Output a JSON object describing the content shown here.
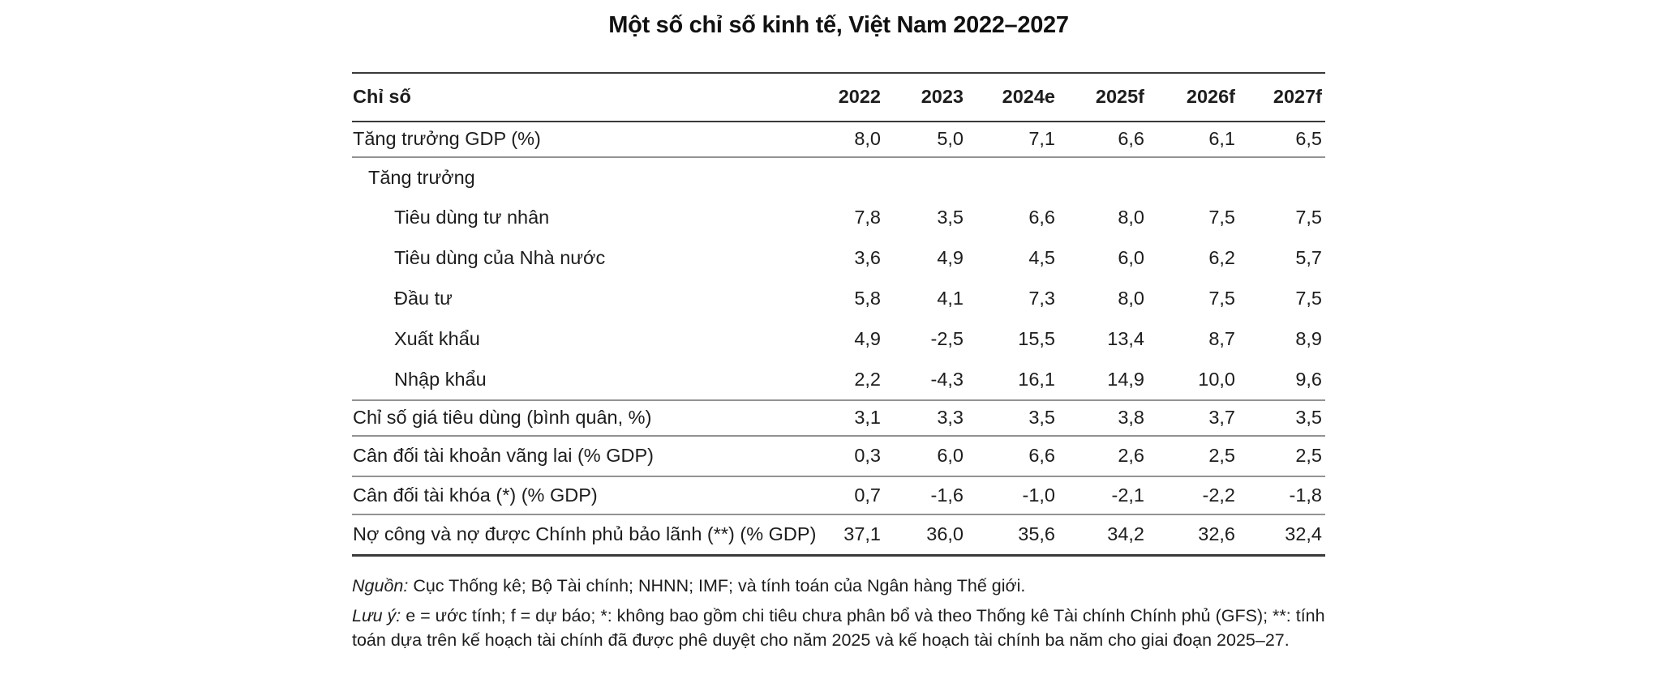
{
  "title": "Một số chỉ số kinh tế, Việt Nam 2022–2027",
  "table": {
    "header": [
      "Chỉ số",
      "2022",
      "2023",
      "2024e",
      "2025f",
      "2026f",
      "2027f"
    ],
    "rows": [
      {
        "label": "Tăng trưởng GDP (%)",
        "indent": 0,
        "values": [
          "8,0",
          "5,0",
          "7,1",
          "6,6",
          "6,1",
          "6,5"
        ]
      },
      {
        "label": "Tăng trưởng",
        "indent": 1,
        "values": []
      },
      {
        "label": "Tiêu dùng tư nhân",
        "indent": 2,
        "values": [
          "7,8",
          "3,5",
          "6,6",
          "8,0",
          "7,5",
          "7,5"
        ]
      },
      {
        "label": "Tiêu dùng của Nhà nước",
        "indent": 2,
        "values": [
          "3,6",
          "4,9",
          "4,5",
          "6,0",
          "6,2",
          "5,7"
        ]
      },
      {
        "label": "Đầu tư",
        "indent": 2,
        "values": [
          "5,8",
          "4,1",
          "7,3",
          "8,0",
          "7,5",
          "7,5"
        ]
      },
      {
        "label": "Xuất khẩu",
        "indent": 2,
        "values": [
          "4,9",
          "-2,5",
          "15,5",
          "13,4",
          "8,7",
          "8,9"
        ]
      },
      {
        "label": "Nhập khẩu",
        "indent": 2,
        "values": [
          "2,2",
          "-4,3",
          "16,1",
          "14,9",
          "10,0",
          "9,6"
        ]
      },
      {
        "label": "Chỉ số giá tiêu dùng (bình quân, %)",
        "indent": 0,
        "values": [
          "3,1",
          "3,3",
          "3,5",
          "3,8",
          "3,7",
          "3,5"
        ]
      },
      {
        "label": "Cân đối tài khoản vãng lai (% GDP)",
        "indent": 0,
        "values": [
          "0,3",
          "6,0",
          "6,6",
          "2,6",
          "2,5",
          "2,5"
        ]
      },
      {
        "label": "Cân đối tài khóa (*) (% GDP)",
        "indent": 0,
        "values": [
          "0,7",
          "-1,6",
          "-1,0",
          "-2,1",
          "-2,2",
          "-1,8"
        ]
      },
      {
        "label": "Nợ công và nợ được Chính phủ bảo lãnh (**) (% GDP)",
        "indent": 0,
        "values": [
          "37,1",
          "36,0",
          "35,6",
          "34,2",
          "32,6",
          "32,4"
        ]
      }
    ]
  },
  "notes": {
    "source_label": "Nguồn:",
    "source_text": " Cục Thống kê; Bộ Tài chính; NHNN; IMF; và tính toán của Ngân hàng Thế giới.",
    "note_label": "Lưu ý:",
    "note_text": " e = ước tính; f = dự báo; *: không bao gồm chi tiêu chưa phân bổ và theo Thống kê Tài chính Chính phủ (GFS); **: tính toán dựa trên kế hoạch tài chính đã được phê duyệt cho năm 2025 và kế hoạch tài chính ba năm cho giai đoạn 2025–27."
  },
  "colors": {
    "text": "#1d1d1d",
    "rule_dark": "#3a3a3a",
    "rule_light": "#939393",
    "background": "#ffffff"
  }
}
